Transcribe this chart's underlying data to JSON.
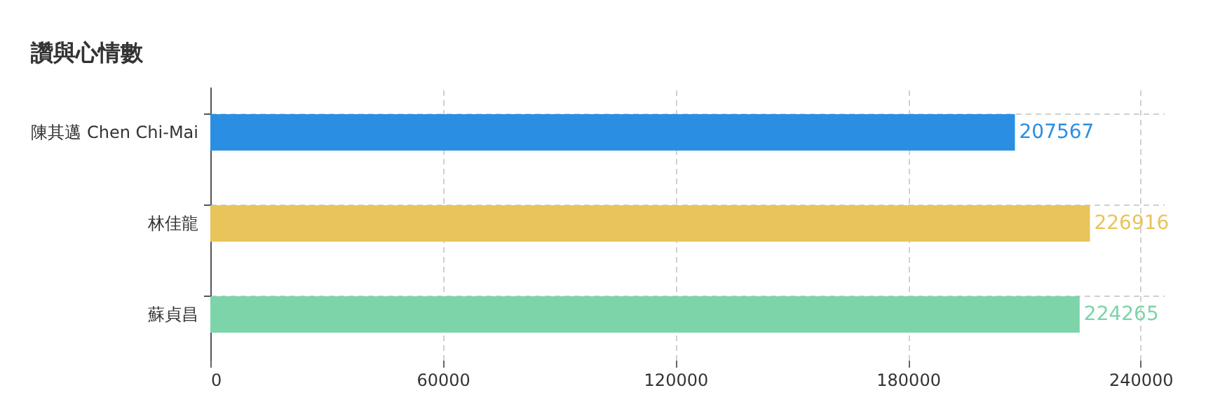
{
  "chart_data": {
    "type": "bar",
    "orientation": "horizontal",
    "title": "讚與心情數",
    "categories": [
      "陳其邁 Chen Chi-Mai",
      "林佳龍",
      "蘇貞昌"
    ],
    "values": [
      207567,
      226916,
      224265
    ],
    "colors": [
      "#2a8fe3",
      "#e8c45a",
      "#7dd4a9"
    ],
    "xlim": [
      0,
      246000
    ],
    "xticks": [
      0,
      60000,
      120000,
      180000,
      240000
    ],
    "grid": true,
    "data_labels": true
  }
}
